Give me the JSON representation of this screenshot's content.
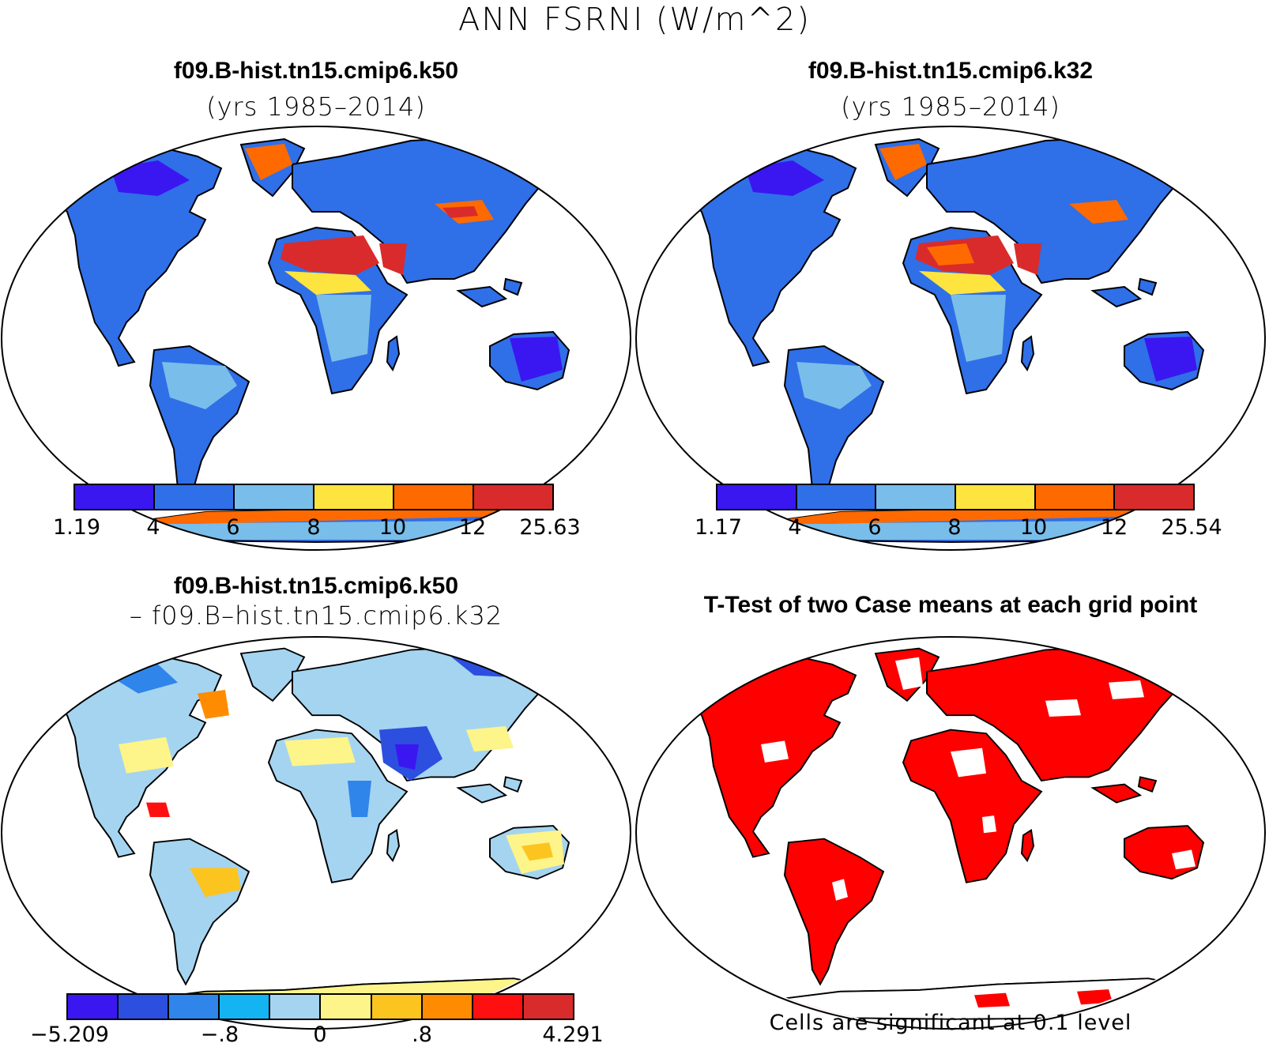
{
  "main_title": "ANN FSRNI (W/m^2)",
  "panels": {
    "top_left": {
      "title": "f09.B-hist.tn15.cmip6.k50",
      "subtitle": "(yrs 1985–2014)"
    },
    "top_right": {
      "title": "f09.B-hist.tn15.cmip6.k32",
      "subtitle": "(yrs 1985–2014)"
    },
    "bottom_left": {
      "title": "f09.B-hist.tn15.cmip6.k50",
      "subtitle": "– f09.B–hist.tn15.cmip6.k32"
    },
    "bottom_right": {
      "title": "T-Test of two Case means at each grid point",
      "note": "Cells are significant at 0.1 level"
    }
  },
  "colorbars": {
    "top_left": {
      "colors": [
        "#3a17f0",
        "#2f6fe8",
        "#79bdea",
        "#fde43f",
        "#ff6a00",
        "#d92b2b"
      ],
      "labels": [
        "1.19",
        "4",
        "6",
        "8",
        "10",
        "12",
        "25.63"
      ]
    },
    "top_right": {
      "colors": [
        "#3a17f0",
        "#2f6fe8",
        "#79bdea",
        "#fde43f",
        "#ff6a00",
        "#d92b2b"
      ],
      "labels": [
        "1.17",
        "4",
        "6",
        "8",
        "10",
        "12",
        "25.54"
      ]
    },
    "bottom_left": {
      "colors": [
        "#3a17f0",
        "#2c4fe0",
        "#2f85ea",
        "#14b4f2",
        "#a4d4f0",
        "#fdf48a",
        "#fcc41f",
        "#ff8c00",
        "#ff1010",
        "#d92b2b"
      ],
      "labels": [
        "−5.209",
        "−.8",
        "0",
        ".8",
        "4.291"
      ],
      "label_edges": [
        0,
        3,
        5,
        7,
        10
      ]
    }
  },
  "significance_color": "#ff0000"
}
